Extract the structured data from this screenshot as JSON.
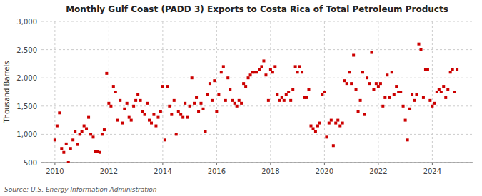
{
  "chart_data": {
    "type": "scatter",
    "title": "Monthly Gulf Coast (PADD 3) Exports to Costa Rica of Total Petroleum Products",
    "ylabel": "Thousand Barrels",
    "source": "Source: U.S. Energy Information Administration",
    "color": "#cc0000",
    "marker": "square",
    "grid": true,
    "xlim": [
      2009.5,
      2025.5
    ],
    "xticks": [
      2010,
      2012,
      2014,
      2016,
      2018,
      2020,
      2022,
      2024
    ],
    "ylim": [
      500,
      3000
    ],
    "yticks": [
      500,
      {
        "value": 1000,
        "label": "1,000"
      },
      {
        "value": 1500,
        "label": "1,500"
      },
      {
        "value": 2000,
        "label": "2,000"
      },
      {
        "value": 2500,
        "label": "2,500"
      },
      {
        "value": 3000,
        "label": "3,000"
      }
    ],
    "x": [
      2010,
      2010.08,
      2010.17,
      2010.25,
      2010.33,
      2010.42,
      2010.5,
      2010.58,
      2010.67,
      2010.75,
      2010.83,
      2010.92,
      2011,
      2011.08,
      2011.17,
      2011.25,
      2011.33,
      2011.42,
      2011.5,
      2011.58,
      2011.67,
      2011.75,
      2011.83,
      2011.92,
      2012,
      2012.08,
      2012.17,
      2012.25,
      2012.33,
      2012.42,
      2012.5,
      2012.58,
      2012.67,
      2012.75,
      2012.83,
      2012.92,
      2013,
      2013.08,
      2013.17,
      2013.25,
      2013.33,
      2013.42,
      2013.5,
      2013.58,
      2013.67,
      2013.75,
      2013.83,
      2013.92,
      2014,
      2014.08,
      2014.17,
      2014.25,
      2014.33,
      2014.42,
      2014.5,
      2014.58,
      2014.67,
      2014.75,
      2014.83,
      2014.92,
      2015,
      2015.08,
      2015.17,
      2015.25,
      2015.33,
      2015.42,
      2015.5,
      2015.58,
      2015.67,
      2015.75,
      2015.83,
      2015.92,
      2016,
      2016.08,
      2016.17,
      2016.25,
      2016.33,
      2016.42,
      2016.5,
      2016.58,
      2016.67,
      2016.75,
      2016.83,
      2016.92,
      2017,
      2017.08,
      2017.17,
      2017.25,
      2017.33,
      2017.42,
      2017.5,
      2017.58,
      2017.67,
      2017.75,
      2017.83,
      2017.92,
      2018,
      2018.08,
      2018.17,
      2018.25,
      2018.33,
      2018.42,
      2018.5,
      2018.58,
      2018.67,
      2018.75,
      2018.83,
      2018.92,
      2019,
      2019.08,
      2019.17,
      2019.25,
      2019.33,
      2019.42,
      2019.5,
      2019.58,
      2019.67,
      2019.75,
      2019.83,
      2019.92,
      2020,
      2020.08,
      2020.17,
      2020.25,
      2020.33,
      2020.42,
      2020.5,
      2020.58,
      2020.67,
      2020.75,
      2020.83,
      2020.92,
      2021,
      2021.08,
      2021.17,
      2021.25,
      2021.33,
      2021.42,
      2021.5,
      2021.58,
      2021.67,
      2021.75,
      2021.83,
      2021.92,
      2022,
      2022.08,
      2022.17,
      2022.25,
      2022.33,
      2022.42,
      2022.5,
      2022.58,
      2022.67,
      2022.75,
      2022.83,
      2022.92,
      2023,
      2023.08,
      2023.17,
      2023.25,
      2023.33,
      2023.42,
      2023.5,
      2023.58,
      2023.67,
      2023.75,
      2023.83,
      2023.92,
      2024,
      2024.08,
      2024.17,
      2024.25,
      2024.33,
      2024.42,
      2024.5,
      2024.58,
      2024.67,
      2024.75,
      2024.83,
      2024.92
    ],
    "values": [
      900,
      1150,
      1380,
      750,
      680,
      830,
      500,
      750,
      900,
      1050,
      820,
      1000,
      1050,
      1150,
      1100,
      1300,
      1000,
      950,
      700,
      700,
      680,
      1000,
      1080,
      2080,
      1550,
      1500,
      1850,
      1750,
      1250,
      1600,
      1200,
      1450,
      1550,
      1300,
      1250,
      1500,
      1600,
      1700,
      1600,
      1400,
      1350,
      1550,
      1250,
      1200,
      1350,
      1150,
      1300,
      1400,
      1850,
      900,
      1850,
      1500,
      1350,
      1600,
      1000,
      1400,
      1350,
      1300,
      1550,
      1300,
      1500,
      2000,
      1550,
      1650,
      1400,
      1550,
      1450,
      1050,
      1700,
      1900,
      1600,
      1950,
      1400,
      1700,
      2100,
      2200,
      1600,
      2000,
      1800,
      1600,
      1550,
      1500,
      1600,
      1550,
      1900,
      1850,
      2000,
      2050,
      2100,
      2100,
      2100,
      2150,
      2200,
      2300,
      2050,
      1600,
      2150,
      2100,
      2200,
      1700,
      1600,
      1650,
      1600,
      1700,
      1750,
      1600,
      1800,
      2200,
      2100,
      2200,
      2100,
      1650,
      1650,
      1800,
      1150,
      1100,
      1050,
      1150,
      1200,
      1700,
      1750,
      950,
      1200,
      1250,
      800,
      1200,
      1250,
      1150,
      1200,
      1950,
      1900,
      2100,
      1900,
      2400,
      1800,
      1400,
      1600,
      2100,
      1350,
      2000,
      1900,
      2450,
      1800,
      1900,
      1850,
      1900,
      1500,
      1650,
      2050,
      1650,
      2100,
      1700,
      1850,
      1750,
      1750,
      1500,
      1250,
      900,
      1450,
      1700,
      1600,
      1700,
      2600,
      2500,
      1650,
      2150,
      2150,
      1600,
      1500,
      1550,
      1750,
      1800,
      1750,
      1850,
      1650,
      1800,
      2100,
      2150,
      1750,
      2150
    ]
  }
}
